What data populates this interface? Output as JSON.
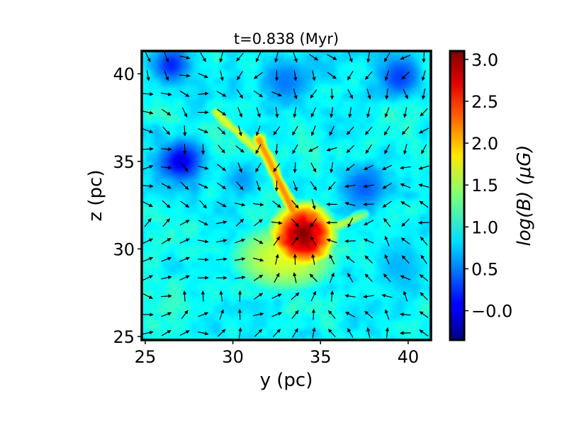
{
  "chart_data": {
    "type": "heatmap",
    "title": "t=0.838 (Myr)",
    "xlabel": "y (pc)",
    "ylabel": "z (pc)",
    "xlim": [
      24.8,
      41.3
    ],
    "ylim": [
      24.8,
      41.3
    ],
    "xticks": [
      "25",
      "30",
      "35",
      "40"
    ],
    "yticks": [
      "25",
      "30",
      "35",
      "40"
    ],
    "xtick_values": [
      25,
      30,
      35,
      40
    ],
    "ytick_values": [
      25,
      30,
      35,
      40
    ],
    "colorbar": {
      "label": "log(B) (μG)",
      "range": [
        -0.35,
        3.1
      ],
      "ticks": [
        "−0.0",
        "0.5",
        "1.0",
        "1.5",
        "2.0",
        "2.5",
        "3.0"
      ],
      "tick_values": [
        0.0,
        0.5,
        1.0,
        1.5,
        2.0,
        2.5,
        3.0
      ],
      "colormap": "jet"
    },
    "field_features": [
      {
        "kind": "hotspot",
        "y": 34.0,
        "z": 30.8,
        "logB": 3.0,
        "spread": 1.4
      },
      {
        "kind": "ridge",
        "from": [
          31.5,
          36.2
        ],
        "to": [
          34.0,
          31.0
        ],
        "logB": 2.2
      },
      {
        "kind": "ridge",
        "from": [
          29.0,
          37.8
        ],
        "to": [
          31.5,
          35.5
        ],
        "logB": 1.7
      },
      {
        "kind": "ridge",
        "from": [
          34.0,
          30.5
        ],
        "to": [
          37.5,
          32.0
        ],
        "logB": 1.6
      },
      {
        "kind": "fan",
        "y": 33.0,
        "z": 29.5,
        "logB": 1.7,
        "spread": 3.2
      },
      {
        "kind": "void",
        "y": 27.0,
        "z": 35.0,
        "logB": 0.0,
        "spread": 1.2
      },
      {
        "kind": "void",
        "y": 26.5,
        "z": 40.5,
        "logB": 0.2,
        "spread": 1.0
      },
      {
        "kind": "void",
        "y": 39.5,
        "z": 39.8,
        "logB": 0.3,
        "spread": 1.2
      },
      {
        "kind": "void",
        "y": 33.0,
        "z": 39.5,
        "logB": 0.5,
        "spread": 1.4
      },
      {
        "kind": "void",
        "y": 37.5,
        "z": 33.5,
        "logB": 0.4,
        "spread": 1.2
      },
      {
        "kind": "void",
        "y": 30.5,
        "z": 34.0,
        "logB": 0.6,
        "spread": 1.0
      },
      {
        "kind": "void",
        "y": 39.5,
        "z": 29.0,
        "logB": 0.7,
        "spread": 1.5
      }
    ],
    "vector_field": "arrows on regular grid, converging toward dense core near (34, 31)"
  }
}
